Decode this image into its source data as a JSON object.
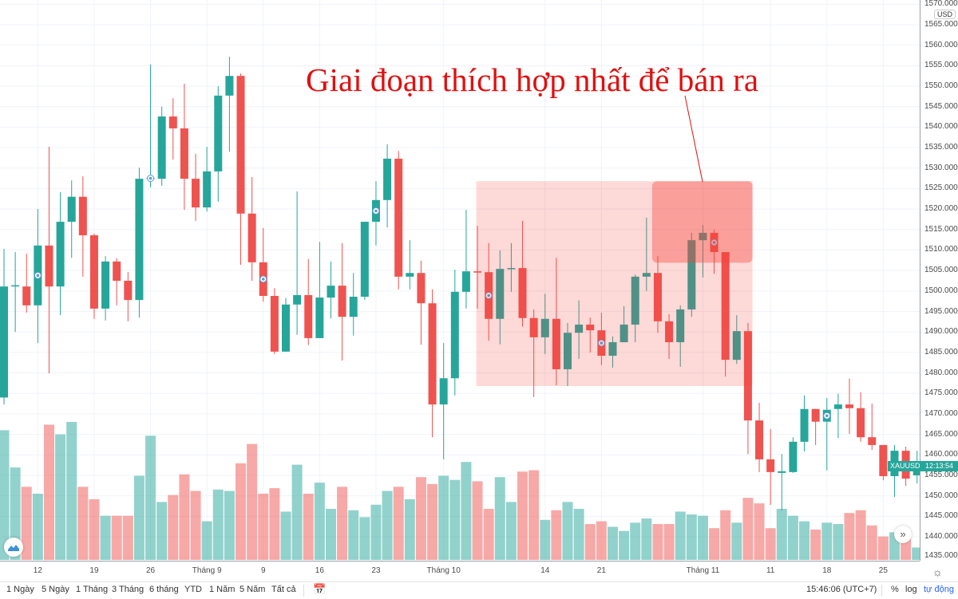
{
  "chart_data": {
    "type": "candlestick",
    "symbol": "XAUUSD",
    "currency": "USD",
    "countdown": "12:13:54",
    "ylim": [
      1435,
      1570
    ],
    "yticks": [
      1435,
      1440,
      1445,
      1450,
      1455,
      1460,
      1465,
      1470,
      1475,
      1480,
      1485,
      1490,
      1495,
      1500,
      1505,
      1510,
      1515,
      1520,
      1525,
      1530,
      1535,
      1540,
      1545,
      1550,
      1555,
      1560,
      1565,
      1570
    ],
    "ytick_format": "000",
    "grid": true,
    "colors": {
      "up": "#26a69a",
      "down": "#ef5350",
      "annotation": "#e01010"
    },
    "xticks": [
      {
        "label": "12",
        "index": 3
      },
      {
        "label": "19",
        "index": 8
      },
      {
        "label": "26",
        "index": 13
      },
      {
        "label": "Tháng 9",
        "index": 18
      },
      {
        "label": "9",
        "index": 23
      },
      {
        "label": "16",
        "index": 28
      },
      {
        "label": "23",
        "index": 33
      },
      {
        "label": "Tháng 10",
        "index": 39
      },
      {
        "label": "14",
        "index": 48
      },
      {
        "label": "21",
        "index": 53
      },
      {
        "label": "Tháng 11",
        "index": 62
      },
      {
        "label": "11",
        "index": 68
      },
      {
        "label": "18",
        "index": 73
      },
      {
        "label": "25",
        "index": 78
      }
    ],
    "ohlc": [
      [
        1474,
        1510.3,
        1472.3,
        1501.1
      ],
      [
        1501.1,
        1509.5,
        1490,
        1501.4
      ],
      [
        1501.1,
        1509.1,
        1494.7,
        1496.5
      ],
      [
        1496.5,
        1520,
        1487.3,
        1511.1
      ],
      [
        1511.1,
        1535.2,
        1479.9,
        1501.1
      ],
      [
        1501.1,
        1524.1,
        1494.1,
        1516.9
      ],
      [
        1516.9,
        1527,
        1508.1,
        1523
      ],
      [
        1523,
        1528,
        1503.5,
        1513.6
      ],
      [
        1513.6,
        1514,
        1493.2,
        1495.7
      ],
      [
        1495.7,
        1508.5,
        1492.8,
        1507.2
      ],
      [
        1507.2,
        1508,
        1496.5,
        1502.5
      ],
      [
        1502.5,
        1504.6,
        1492.6,
        1497.8
      ],
      [
        1497.8,
        1530.1,
        1493.5,
        1527.4
      ],
      [
        1527.4,
        1555.3,
        1525.3,
        1527.6
      ],
      [
        1527.4,
        1545,
        1525.7,
        1542.6
      ],
      [
        1542.6,
        1547.1,
        1532.1,
        1539.7
      ],
      [
        1539.7,
        1550.6,
        1519.8,
        1527.4
      ],
      [
        1527.4,
        1533.5,
        1517.1,
        1520.4
      ],
      [
        1520.4,
        1535.2,
        1519.4,
        1529.2
      ],
      [
        1529.2,
        1550,
        1521.8,
        1547.7
      ],
      [
        1547.7,
        1557.2,
        1534,
        1552.5
      ],
      [
        1552.5,
        1553.1,
        1506.4,
        1518.9
      ],
      [
        1518.9,
        1527.8,
        1502.5,
        1507
      ],
      [
        1507,
        1515.4,
        1497.4,
        1498.8
      ],
      [
        1498.8,
        1500.7,
        1484.6,
        1485.2
      ],
      [
        1485.2,
        1498.3,
        1485.2,
        1496.7
      ],
      [
        1496.7,
        1524.3,
        1489.3,
        1499
      ],
      [
        1499,
        1507.8,
        1486.8,
        1488.5
      ],
      [
        1488.5,
        1512,
        1488.5,
        1498.4
      ],
      [
        1498.4,
        1507.2,
        1493.3,
        1501.3
      ],
      [
        1501.3,
        1511.7,
        1483,
        1493.7
      ],
      [
        1493.7,
        1504.4,
        1489.1,
        1498.6
      ],
      [
        1498.6,
        1516.9,
        1497.8,
        1516.9
      ],
      [
        1516.9,
        1526.8,
        1511.1,
        1522.2
      ],
      [
        1522.2,
        1535.8,
        1515.5,
        1532.3
      ],
      [
        1532.3,
        1534.2,
        1500.4,
        1503.5
      ],
      [
        1503.5,
        1512.4,
        1500.4,
        1504.4
      ],
      [
        1504.4,
        1507.4,
        1486.9,
        1497
      ],
      [
        1497,
        1500.4,
        1464.3,
        1472.3
      ],
      [
        1472.3,
        1487.3,
        1458.9,
        1478.7
      ],
      [
        1478.7,
        1505.2,
        1474.5,
        1499.8
      ],
      [
        1499.8,
        1519.8,
        1495.7,
        1504.8
      ],
      [
        1504.8,
        1515.9,
        1495.7,
        1504.5
      ],
      [
        1504.6,
        1511.7,
        1487.9,
        1493.2
      ],
      [
        1493.2,
        1509.9,
        1487,
        1505.4
      ],
      [
        1505.4,
        1511.7,
        1499.8,
        1505.6
      ],
      [
        1505.6,
        1517.1,
        1491.3,
        1493.4
      ],
      [
        1493.4,
        1495.5,
        1474.1,
        1488.7
      ],
      [
        1488.7,
        1499.3,
        1484.6,
        1493.2
      ],
      [
        1493.2,
        1508.1,
        1477,
        1480.9
      ],
      [
        1480.9,
        1492.2,
        1476.8,
        1489.8
      ],
      [
        1489.8,
        1497.7,
        1483.4,
        1491.8
      ],
      [
        1491.8,
        1493.5,
        1485,
        1490.4
      ],
      [
        1490.4,
        1494.7,
        1481.9,
        1484.2
      ],
      [
        1484.2,
        1488.9,
        1481.3,
        1487.5
      ],
      [
        1487.5,
        1496.3,
        1487.5,
        1491.8
      ],
      [
        1491.8,
        1504,
        1487.5,
        1503.5
      ],
      [
        1503.5,
        1517.9,
        1500,
        1504.4
      ],
      [
        1504.4,
        1508.5,
        1489.8,
        1492.6
      ],
      [
        1492.6,
        1494.3,
        1483.4,
        1487.5
      ],
      [
        1487.5,
        1496.5,
        1481.5,
        1495.5
      ],
      [
        1495.5,
        1514.2,
        1493.7,
        1512.4
      ],
      [
        1512.4,
        1516.1,
        1503.3,
        1514.2
      ],
      [
        1514.2,
        1515,
        1504.2,
        1509.5
      ],
      [
        1509.5,
        1509.5,
        1479.1,
        1483.2
      ],
      [
        1483.2,
        1494.1,
        1482.2,
        1490.2
      ],
      [
        1490.2,
        1492.2,
        1460.2,
        1468.4
      ],
      [
        1468.4,
        1472.7,
        1455.8,
        1458.9
      ],
      [
        1458.9,
        1466.3,
        1447.8,
        1455.8
      ],
      [
        1455.6,
        1460.2,
        1446.4,
        1456
      ],
      [
        1455.8,
        1464.3,
        1455.6,
        1463.2
      ],
      [
        1463.2,
        1474.5,
        1460.8,
        1471.2
      ],
      [
        1471.2,
        1471.2,
        1462.4,
        1468.1
      ],
      [
        1468.1,
        1473.9,
        1456.2,
        1471
      ],
      [
        1471.2,
        1474.9,
        1464.1,
        1472.3
      ],
      [
        1472.3,
        1478.6,
        1465.1,
        1471.4
      ],
      [
        1471.4,
        1475.3,
        1463.2,
        1464.3
      ],
      [
        1464.3,
        1472.5,
        1461.2,
        1462.4
      ],
      [
        1462.4,
        1462.4,
        1453.8,
        1454.8
      ],
      [
        1454.8,
        1462.4,
        1449.7,
        1461
      ],
      [
        1461,
        1462,
        1452.4,
        1454.2
      ],
      [
        1455,
        1461,
        1453,
        1456
      ]
    ],
    "volume_relative": [
      94,
      67,
      53,
      48,
      98,
      91,
      100,
      53,
      44,
      32,
      32,
      32,
      61,
      90,
      42,
      47,
      62,
      50,
      28,
      51,
      50,
      70,
      84,
      48,
      52,
      35,
      69,
      48,
      56,
      37,
      53,
      36,
      31,
      40,
      50,
      53,
      44,
      60,
      55,
      61,
      58,
      71,
      57,
      37,
      60,
      42,
      64,
      65,
      29,
      36,
      42,
      37,
      26,
      28,
      24,
      21,
      27,
      30,
      26,
      26,
      35,
      33,
      32,
      23,
      36,
      27,
      45,
      41,
      23,
      37,
      32,
      28,
      22,
      27,
      26,
      34,
      36,
      25,
      17,
      20,
      20,
      9
    ],
    "event_markers": [
      3,
      13,
      23,
      33,
      43,
      53,
      63,
      73
    ],
    "annotations": {
      "text": "Giai đoạn thích hợp nhất để bán ra",
      "zone": {
        "from_index": 41.9,
        "to_index": 66.4,
        "price_top": 1526.8,
        "price_bottom": 1476.8
      },
      "sell_zone": {
        "from_index": 57.5,
        "to_index": 66.4,
        "price_top": 1526.8,
        "price_bottom": 1506.9
      }
    }
  },
  "toolbar": {
    "ranges": [
      "1 Ngày",
      "5 Ngày",
      "1 Tháng",
      "3 Tháng",
      "6 tháng",
      "YTD",
      "1 Năm",
      "5 Năm",
      "Tất cả"
    ],
    "clock": "15:46:06 (UTC+7)",
    "percent": "%",
    "log": "log",
    "auto": "tự động",
    "auto_color": "#2962ff"
  },
  "icons": {
    "goto_date": "calendar-arrow-icon",
    "settings": "gear-icon",
    "scroll": "double-chevron-right-icon",
    "logo": "cloud-chart-icon"
  }
}
